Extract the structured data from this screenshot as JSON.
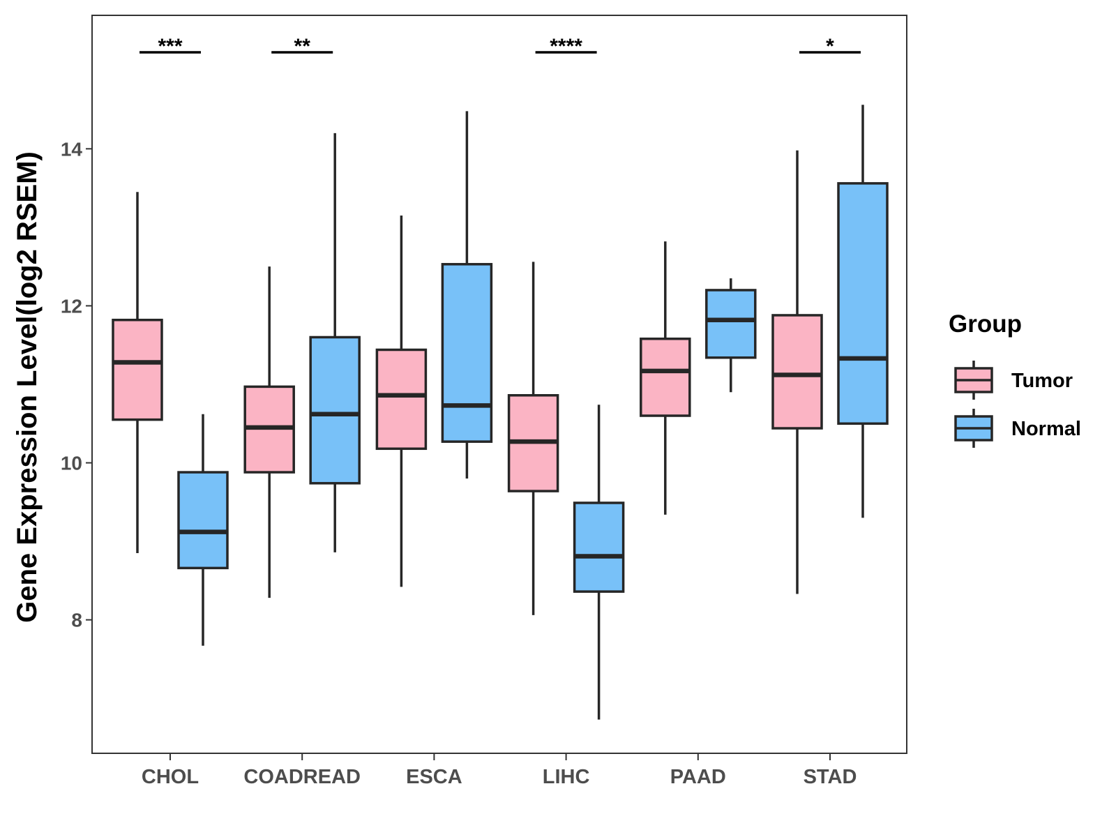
{
  "chart_data": {
    "type": "boxplot",
    "title": "",
    "xlabel": "",
    "ylabel": "Gene Expression Level(log2 RSEM)",
    "ylim": [
      6.3,
      15.7
    ],
    "yticks": [
      8,
      10,
      12,
      14
    ],
    "grid": false,
    "categories": [
      "CHOL",
      "COADREAD",
      "ESCA",
      "LIHC",
      "PAAD",
      "STAD"
    ],
    "legend": {
      "title": "Group",
      "placement": "right",
      "entries": [
        {
          "name": "Tumor",
          "color": "#FBB4C4"
        },
        {
          "name": "Normal",
          "color": "#78C1F8"
        }
      ]
    },
    "series": [
      {
        "name": "Tumor",
        "color": "#FBB4C4",
        "boxes": [
          {
            "min": 8.85,
            "q1": 10.55,
            "median": 11.28,
            "q3": 11.82,
            "max": 13.45
          },
          {
            "min": 8.28,
            "q1": 9.88,
            "median": 10.45,
            "q3": 10.97,
            "max": 12.5
          },
          {
            "min": 8.42,
            "q1": 10.18,
            "median": 10.86,
            "q3": 11.44,
            "max": 13.15
          },
          {
            "min": 8.06,
            "q1": 9.64,
            "median": 10.27,
            "q3": 10.86,
            "max": 12.56
          },
          {
            "min": 9.34,
            "q1": 10.6,
            "median": 11.17,
            "q3": 11.58,
            "max": 12.82
          },
          {
            "min": 8.33,
            "q1": 10.44,
            "median": 11.12,
            "q3": 11.88,
            "max": 13.98
          }
        ]
      },
      {
        "name": "Normal",
        "color": "#78C1F8",
        "boxes": [
          {
            "min": 7.67,
            "q1": 8.66,
            "median": 9.12,
            "q3": 9.88,
            "max": 10.62
          },
          {
            "min": 8.86,
            "q1": 9.74,
            "median": 10.62,
            "q3": 11.6,
            "max": 14.2
          },
          {
            "min": 9.8,
            "q1": 10.27,
            "median": 10.73,
            "q3": 12.53,
            "max": 14.48
          },
          {
            "min": 6.73,
            "q1": 8.36,
            "median": 8.81,
            "q3": 9.49,
            "max": 10.74
          },
          {
            "min": 10.9,
            "q1": 11.34,
            "median": 11.82,
            "q3": 12.2,
            "max": 12.35
          },
          {
            "min": 9.3,
            "q1": 10.5,
            "median": 11.33,
            "q3": 13.56,
            "max": 14.56
          }
        ]
      }
    ],
    "annotations": [
      {
        "category": "CHOL",
        "text": "***"
      },
      {
        "category": "COADREAD",
        "text": "**"
      },
      {
        "category": "LIHC",
        "text": "****"
      },
      {
        "category": "STAD",
        "text": "*"
      }
    ]
  }
}
